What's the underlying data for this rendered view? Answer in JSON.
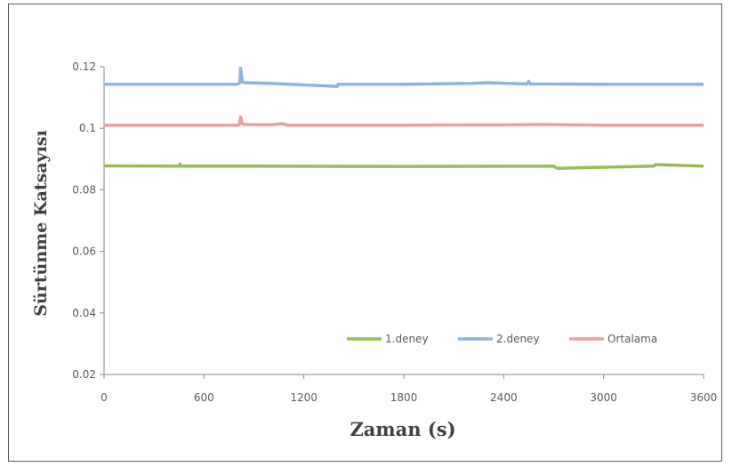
{
  "chart_data": {
    "type": "line",
    "title": "",
    "xlabel": "Zaman (s)",
    "ylabel": "Sürtünme Katsayısı",
    "xlim": [
      0,
      3600
    ],
    "ylim": [
      0.02,
      0.12
    ],
    "xticks": [
      0,
      600,
      1200,
      1800,
      2400,
      3000,
      3600
    ],
    "yticks": [
      0.02,
      0.04,
      0.06,
      0.08,
      0.1,
      0.12
    ],
    "xtick_labels": [
      "0",
      "600",
      "1200",
      "1800",
      "2400",
      "3000",
      "3600"
    ],
    "ytick_labels": [
      "0.02",
      "0.04",
      "0.06",
      "0.08",
      "0.1",
      "0.12"
    ],
    "grid": false,
    "legend_position": "bottom-right",
    "series": [
      {
        "name": "1.deney",
        "color": "#9bbb59",
        "x": [
          0,
          450,
          455,
          460,
          900,
          1800,
          2700,
          2720,
          3300,
          3310,
          3600
        ],
        "y": [
          0.0878,
          0.0877,
          0.0884,
          0.0877,
          0.0877,
          0.0876,
          0.0877,
          0.087,
          0.0877,
          0.0882,
          0.0877
        ]
      },
      {
        "name": "2.deney",
        "color": "#8eb4e3",
        "x": [
          0,
          800,
          815,
          820,
          830,
          850,
          1000,
          1400,
          1405,
          1800,
          2200,
          2300,
          2540,
          2550,
          2560,
          3000,
          3600
        ],
        "y": [
          0.1143,
          0.1143,
          0.1147,
          0.1195,
          0.115,
          0.1148,
          0.1146,
          0.1136,
          0.1143,
          0.1143,
          0.1146,
          0.1148,
          0.1144,
          0.1153,
          0.1144,
          0.1143,
          0.1143
        ]
      },
      {
        "name": "Ortalama",
        "color": "#e6a1a1",
        "x": [
          0,
          810,
          820,
          830,
          850,
          1000,
          1070,
          1100,
          1800,
          2400,
          2600,
          3000,
          3600
        ],
        "y": [
          0.101,
          0.101,
          0.1037,
          0.1015,
          0.1012,
          0.1011,
          0.1015,
          0.101,
          0.101,
          0.1011,
          0.1012,
          0.101,
          0.101
        ]
      }
    ]
  }
}
